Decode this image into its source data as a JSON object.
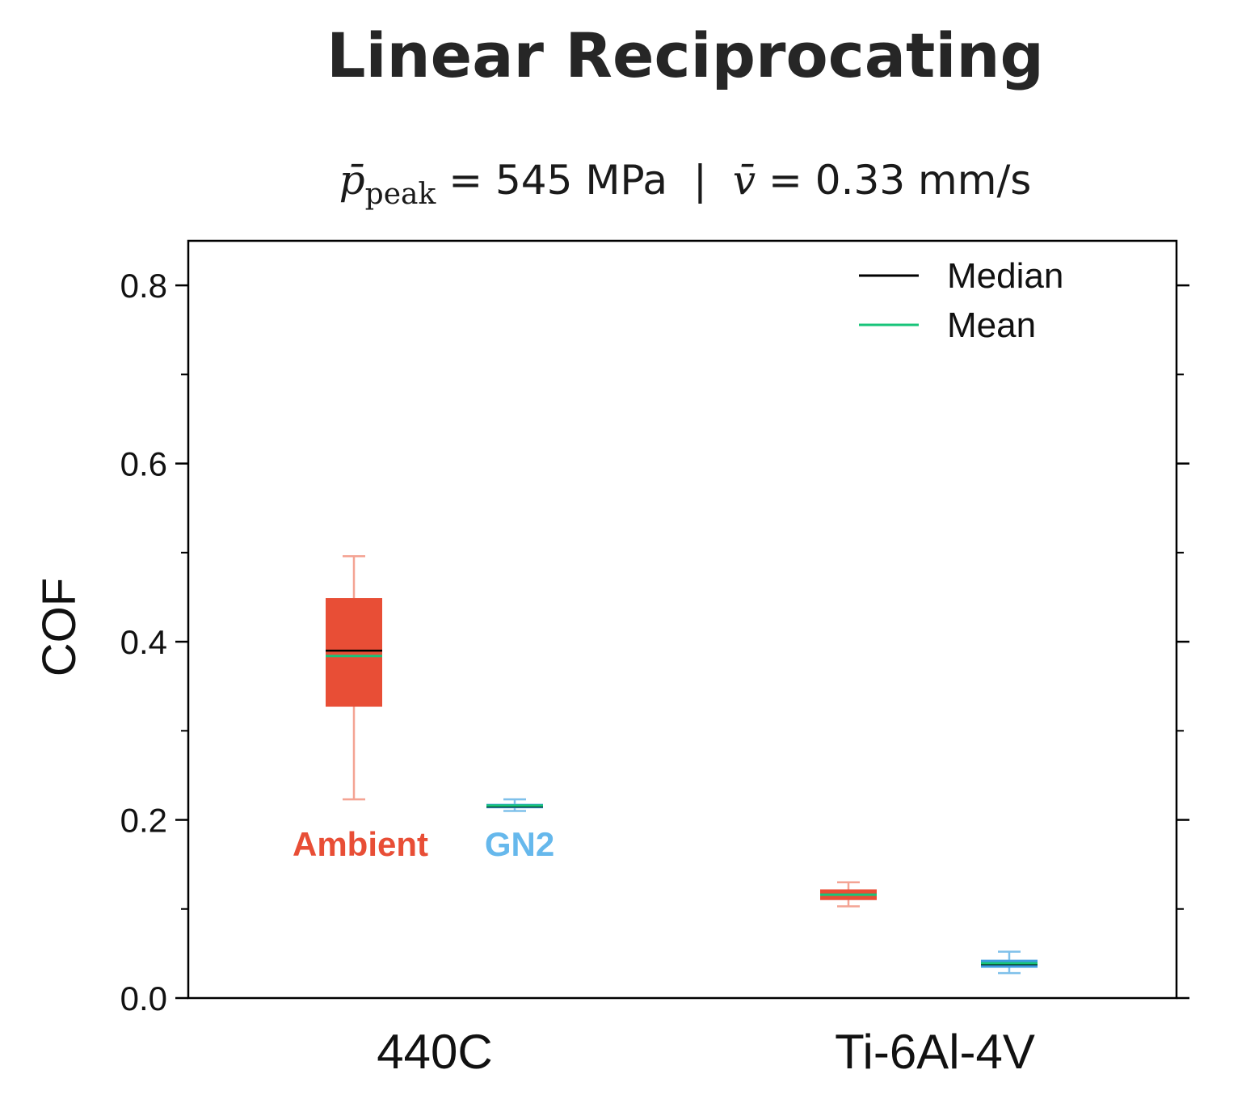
{
  "title": "Linear Reciprocating",
  "subtitle": {
    "pressure_symbol": "p̄",
    "pressure_subscript": "peak",
    "pressure_value": " = 545 MPa",
    "separator": "|",
    "velocity_symbol": "v̄",
    "velocity_value": " = 0.33 mm/s"
  },
  "chart_data": {
    "type": "box",
    "title": "Linear Reciprocating",
    "ylabel": "COF",
    "xlabel": "",
    "ylim": [
      0.0,
      0.85
    ],
    "yticks": [
      0.0,
      0.2,
      0.4,
      0.6,
      0.8
    ],
    "ytick_labels": [
      "0.0",
      "0.2",
      "0.4",
      "0.6",
      "0.8"
    ],
    "minor_yticks": [
      0.1,
      0.3,
      0.5,
      0.7
    ],
    "categories": [
      "440C",
      "Ti-6Al-4V"
    ],
    "series": [
      {
        "name": "Ambient",
        "color": "#e84e36",
        "whisker_color": "#f4a393",
        "boxes": [
          {
            "category": "440C",
            "whisker_low": 0.223,
            "q1": 0.327,
            "median": 0.39,
            "mean": 0.384,
            "q3": 0.449,
            "whisker_high": 0.496
          },
          {
            "category": "Ti-6Al-4V",
            "whisker_low": 0.103,
            "q1": 0.11,
            "median": 0.116,
            "mean": 0.116,
            "q3": 0.122,
            "whisker_high": 0.13
          }
        ]
      },
      {
        "name": "GN2",
        "color": "#3d9de0",
        "whisker_color": "#7fc0ea",
        "boxes": [
          {
            "category": "440C",
            "whisker_low": 0.21,
            "q1": 0.213,
            "median": 0.215,
            "mean": 0.216,
            "q3": 0.218,
            "whisker_high": 0.223
          },
          {
            "category": "Ti-6Al-4V",
            "whisker_low": 0.028,
            "q1": 0.034,
            "median": 0.038,
            "mean": 0.039,
            "q3": 0.043,
            "whisker_high": 0.052
          }
        ]
      }
    ],
    "legend": [
      {
        "label": "Median",
        "color": "#000000"
      },
      {
        "label": "Mean",
        "color": "#18c47a"
      }
    ],
    "legend_position": "top-right",
    "annotations": [
      {
        "text": "Ambient",
        "color": "#e84e36"
      },
      {
        "text": "GN2",
        "color": "#66b8ec"
      }
    ],
    "grid": false
  }
}
